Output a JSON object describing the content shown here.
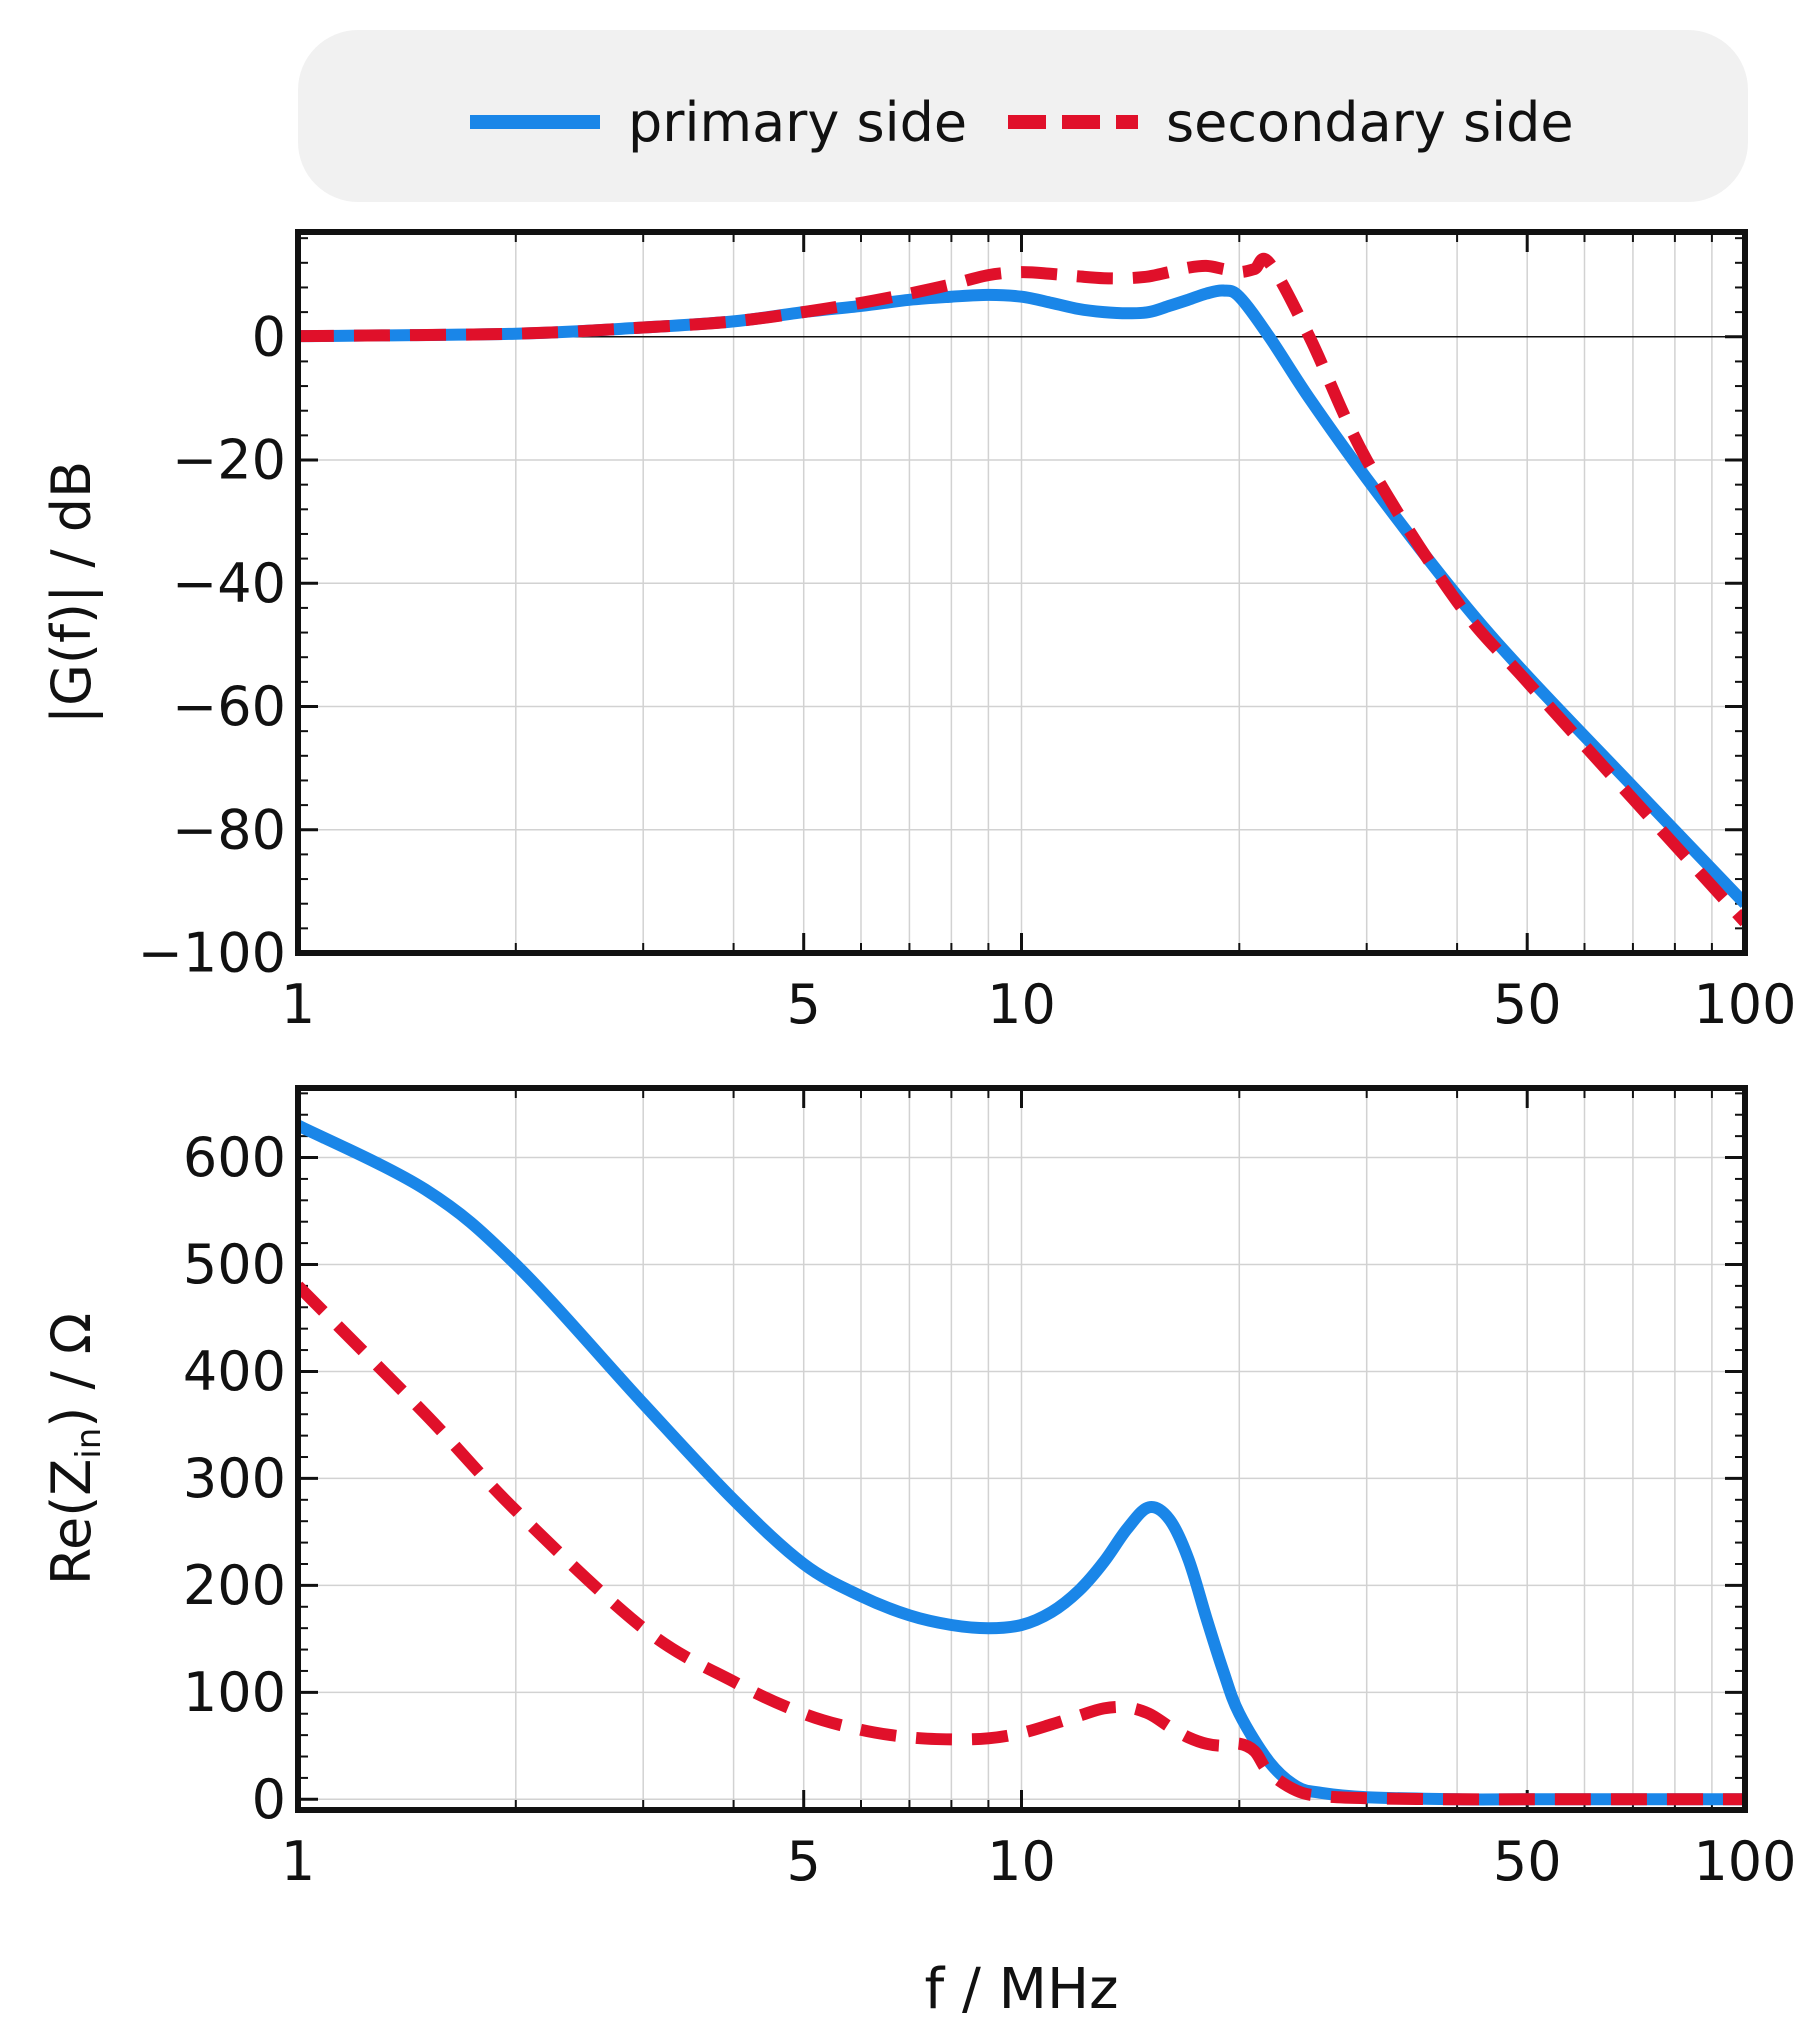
{
  "legend": {
    "primary_label": "primary side",
    "secondary_label": "secondary side"
  },
  "colors": {
    "primary": "#1a86e8",
    "secondary": "#e0102a"
  },
  "chart_data": [
    {
      "type": "line",
      "title": "",
      "xlabel": "",
      "ylabel": "|G(f)| / dB",
      "xscale": "log",
      "xlim": [
        1,
        100
      ],
      "ylim": [
        -100,
        17
      ],
      "xticks": [
        1,
        5,
        10,
        50,
        100
      ],
      "yticks": [
        0,
        -20,
        -40,
        -60,
        -80,
        -100
      ],
      "ytick_labels": [
        "0",
        "−20",
        "−40",
        "−60",
        "−80",
        "−100"
      ],
      "grid": true,
      "zero_line": true,
      "series": [
        {
          "name": "primary side",
          "x": [
            1,
            2,
            3,
            4,
            5,
            6,
            7,
            8,
            9,
            10,
            11,
            12,
            13,
            14,
            15,
            16,
            17,
            18,
            19,
            20,
            22,
            25,
            30,
            40,
            50,
            70,
            100
          ],
          "y": [
            0.1,
            0.5,
            1.5,
            2.5,
            4,
            5,
            6,
            6.5,
            6.8,
            6.5,
            5.5,
            4.5,
            4,
            3.8,
            4,
            5,
            6,
            7,
            7.5,
            6.5,
            0,
            -10,
            -23,
            -42,
            -55,
            -73,
            -92
          ]
        },
        {
          "name": "secondary side",
          "x": [
            1,
            2,
            3,
            4,
            5,
            6,
            7,
            8,
            9,
            10,
            11,
            12,
            13,
            14,
            15,
            16,
            17,
            18,
            19,
            20,
            21,
            22,
            25,
            30,
            40,
            50,
            70,
            100
          ],
          "y": [
            0.1,
            0.5,
            1.5,
            2.5,
            4,
            5.5,
            7,
            8.5,
            10,
            10.5,
            10.2,
            9.8,
            9.5,
            9.5,
            9.8,
            10.5,
            11.2,
            11.5,
            11,
            10.5,
            11,
            12,
            0,
            -20,
            -43,
            -56,
            -75,
            -95
          ]
        }
      ]
    },
    {
      "type": "line",
      "title": "",
      "xlabel": "f / MHz",
      "ylabel": "Re(Z_in) / Ω",
      "xscale": "log",
      "xlim": [
        1,
        100
      ],
      "ylim": [
        -10,
        665
      ],
      "xticks": [
        1,
        5,
        10,
        50,
        100
      ],
      "yticks": [
        0,
        100,
        200,
        300,
        400,
        500,
        600
      ],
      "grid": true,
      "series": [
        {
          "name": "primary side",
          "x": [
            1,
            1.5,
            2,
            3,
            4,
            5,
            6,
            7,
            8,
            9,
            10,
            11,
            12,
            13,
            14,
            15,
            16,
            17,
            18,
            19,
            20,
            22,
            24,
            26,
            30,
            40,
            50,
            70,
            100
          ],
          "y": [
            630,
            570,
            500,
            370,
            280,
            220,
            190,
            172,
            163,
            160,
            163,
            175,
            195,
            222,
            253,
            273,
            262,
            225,
            170,
            120,
            80,
            35,
            12,
            6,
            2,
            0,
            0,
            0,
            0
          ]
        },
        {
          "name": "secondary side",
          "x": [
            1,
            1.5,
            2,
            3,
            4,
            5,
            6,
            7,
            8,
            9,
            10,
            11,
            12,
            13,
            14,
            15,
            16,
            17,
            18,
            19,
            20,
            21,
            22,
            24,
            26,
            30,
            40,
            50,
            70,
            100
          ],
          "y": [
            480,
            360,
            270,
            160,
            110,
            80,
            65,
            58,
            56,
            57,
            62,
            70,
            78,
            85,
            86,
            80,
            68,
            58,
            52,
            50,
            52,
            45,
            25,
            8,
            3,
            1,
            0,
            0,
            0,
            0
          ]
        }
      ]
    }
  ]
}
